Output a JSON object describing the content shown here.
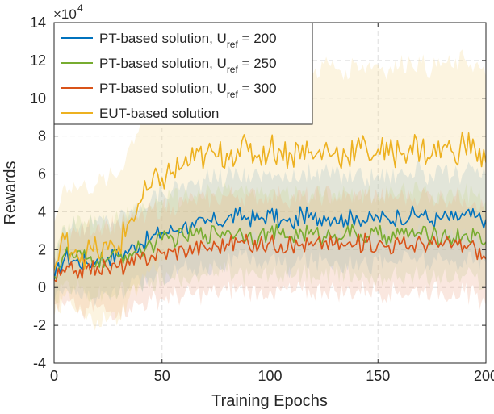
{
  "chart_data": {
    "type": "line",
    "title": "",
    "xlabel": "Training Epochs",
    "ylabel": "Rewards",
    "y_multiplier": "×10^4",
    "xlim": [
      0,
      200
    ],
    "ylim": [
      -4,
      14
    ],
    "xticks": [
      0,
      50,
      100,
      150,
      200
    ],
    "yticks": [
      -4,
      -2,
      0,
      2,
      4,
      6,
      8,
      10,
      12,
      14
    ],
    "grid": true,
    "legend_position": "top-left",
    "x": [
      0,
      5,
      10,
      15,
      20,
      25,
      30,
      35,
      40,
      45,
      50,
      55,
      60,
      65,
      70,
      75,
      80,
      85,
      90,
      95,
      100,
      105,
      110,
      115,
      120,
      125,
      130,
      135,
      140,
      145,
      150,
      155,
      160,
      165,
      170,
      175,
      180,
      185,
      190,
      195,
      200
    ],
    "series": [
      {
        "name": "PT-based solution, U_ref = 200",
        "legend_main": "PT-based solution, U",
        "legend_sub": "ref",
        "legend_tail": " = 200",
        "color": "#0072bd",
        "band_color": "#7fb8de",
        "values": [
          0.4,
          1.6,
          1.4,
          1.3,
          1.5,
          1.6,
          1.7,
          2.0,
          2.3,
          2.6,
          2.9,
          3.0,
          3.3,
          3.2,
          3.4,
          3.5,
          3.6,
          3.8,
          3.7,
          3.6,
          3.9,
          3.5,
          3.3,
          3.9,
          3.6,
          3.8,
          3.7,
          3.6,
          3.8,
          3.5,
          3.7,
          3.6,
          3.8,
          3.8,
          3.9,
          3.5,
          3.7,
          3.6,
          3.8,
          3.7,
          3.6
        ],
        "spread": [
          1.2,
          1.6,
          1.8,
          1.9,
          2.0,
          2.0,
          2.0,
          2.0,
          2.1,
          2.1,
          2.2,
          2.2,
          2.2,
          2.2,
          2.3,
          2.3,
          2.3,
          2.3,
          2.3,
          2.3,
          2.3,
          2.3,
          2.3,
          2.3,
          2.3,
          2.3,
          2.3,
          2.3,
          2.3,
          2.3,
          2.3,
          2.3,
          2.3,
          2.3,
          2.3,
          2.3,
          2.3,
          2.3,
          2.3,
          2.3,
          2.3
        ]
      },
      {
        "name": "PT-based solution, U_ref = 250",
        "legend_main": "PT-based solution, U",
        "legend_sub": "ref",
        "legend_tail": " = 250",
        "color": "#77ac30",
        "band_color": "#bbd697",
        "values": [
          0.6,
          1.8,
          1.6,
          1.5,
          1.4,
          1.5,
          1.6,
          1.8,
          2.0,
          2.3,
          2.5,
          2.6,
          2.7,
          2.8,
          2.8,
          2.9,
          3.0,
          2.9,
          2.8,
          2.7,
          2.9,
          2.8,
          2.7,
          2.9,
          2.8,
          2.7,
          2.8,
          2.9,
          2.8,
          2.7,
          2.8,
          2.7,
          2.8,
          2.9,
          2.8,
          2.7,
          2.8,
          2.6,
          2.8,
          2.7,
          2.4
        ],
        "spread": [
          1.2,
          1.5,
          1.7,
          1.8,
          1.9,
          1.9,
          1.9,
          2.0,
          2.0,
          2.0,
          2.1,
          2.1,
          2.1,
          2.1,
          2.1,
          2.1,
          2.2,
          2.2,
          2.2,
          2.2,
          2.2,
          2.2,
          2.2,
          2.2,
          2.2,
          2.2,
          2.2,
          2.2,
          2.2,
          2.2,
          2.2,
          2.2,
          2.2,
          2.2,
          2.2,
          2.2,
          2.2,
          2.2,
          2.2,
          2.2,
          2.2
        ]
      },
      {
        "name": "PT-based solution, U_ref = 300",
        "legend_main": "PT-based solution, U",
        "legend_sub": "ref",
        "legend_tail": " = 300",
        "color": "#d95319",
        "band_color": "#eca98c",
        "values": [
          0.4,
          0.8,
          0.9,
          1.0,
          1.1,
          1.0,
          1.1,
          1.2,
          1.5,
          1.7,
          1.8,
          1.9,
          2.0,
          2.1,
          2.1,
          2.2,
          2.3,
          2.4,
          2.3,
          2.2,
          2.4,
          2.3,
          2.2,
          2.3,
          2.2,
          2.4,
          2.3,
          2.2,
          2.3,
          2.4,
          2.3,
          2.2,
          2.3,
          2.2,
          2.4,
          2.3,
          2.2,
          2.3,
          2.2,
          2.1,
          1.5
        ],
        "spread": [
          1.3,
          1.8,
          2.0,
          2.1,
          2.2,
          2.3,
          2.3,
          2.3,
          2.4,
          2.4,
          2.4,
          2.4,
          2.5,
          2.5,
          2.5,
          2.5,
          2.5,
          2.5,
          2.5,
          2.5,
          2.5,
          2.5,
          2.5,
          2.5,
          2.5,
          2.5,
          2.5,
          2.5,
          2.5,
          2.5,
          2.5,
          2.5,
          2.5,
          2.5,
          2.5,
          2.5,
          2.5,
          2.5,
          2.5,
          2.5,
          2.5
        ]
      },
      {
        "name": "EUT-based solution",
        "legend_main": "EUT-based solution",
        "legend_sub": "",
        "legend_tail": "",
        "color": "#edb120",
        "band_color": "#f6d88f",
        "values": [
          0.9,
          2.5,
          2.0,
          1.8,
          1.9,
          2.0,
          2.2,
          3.5,
          4.5,
          5.3,
          5.8,
          6.1,
          6.5,
          6.7,
          7.0,
          6.9,
          7.1,
          7.3,
          7.2,
          7.0,
          7.4,
          7.2,
          7.0,
          7.5,
          6.8,
          7.3,
          7.1,
          7.0,
          7.4,
          7.2,
          7.3,
          7.0,
          7.2,
          7.5,
          7.3,
          7.0,
          7.4,
          7.1,
          7.6,
          7.3,
          6.6
        ],
        "spread": [
          2.5,
          3.0,
          3.3,
          3.5,
          3.6,
          3.7,
          3.8,
          4.0,
          4.2,
          4.3,
          4.4,
          4.4,
          4.5,
          4.5,
          4.5,
          4.5,
          4.5,
          4.5,
          4.5,
          4.5,
          4.5,
          4.5,
          4.5,
          4.5,
          4.5,
          4.5,
          4.5,
          4.5,
          4.5,
          4.5,
          4.5,
          4.5,
          4.5,
          4.5,
          4.5,
          4.5,
          4.5,
          4.5,
          4.5,
          4.5,
          4.5
        ]
      }
    ]
  }
}
